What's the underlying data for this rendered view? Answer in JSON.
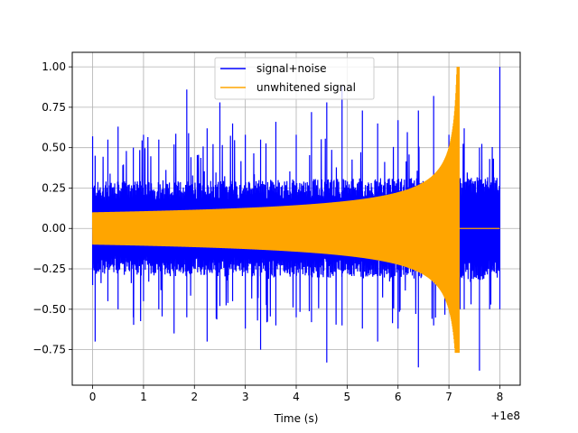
{
  "chart_data": {
    "type": "line",
    "xlabel": "Time (s)",
    "ylabel": "",
    "x_offset_label": "+1e8",
    "xlim": [
      -0.4,
      8.4
    ],
    "ylim": [
      -0.97,
      1.09
    ],
    "x_ticks": [
      0,
      1,
      2,
      3,
      4,
      5,
      6,
      7,
      8
    ],
    "x_tick_labels": [
      "0",
      "1",
      "2",
      "3",
      "4",
      "5",
      "6",
      "7",
      "8"
    ],
    "y_ticks": [
      -0.75,
      -0.5,
      -0.25,
      0.0,
      0.25,
      0.5,
      0.75,
      1.0
    ],
    "y_tick_labels": [
      "−0.75",
      "−0.50",
      "−0.25",
      "0.00",
      "0.25",
      "0.50",
      "0.75",
      "1.00"
    ],
    "grid": true,
    "legend_position": "top-center",
    "series": [
      {
        "name": "signal+noise",
        "color": "#0000ff",
        "x_range": [
          0,
          8.0
        ],
        "points": [
          [
            0.0,
            0.57
          ],
          [
            0.0,
            -0.35
          ],
          [
            0.05,
            0.45
          ],
          [
            0.05,
            -0.7
          ],
          [
            0.3,
            0.55
          ],
          [
            0.3,
            -0.45
          ],
          [
            0.5,
            0.63
          ],
          [
            0.5,
            -0.5
          ],
          [
            0.8,
            0.5
          ],
          [
            0.8,
            -0.55
          ],
          [
            1.0,
            0.58
          ],
          [
            1.0,
            -0.45
          ],
          [
            1.3,
            0.55
          ],
          [
            1.3,
            -0.5
          ],
          [
            1.6,
            0.52
          ],
          [
            1.6,
            -0.65
          ],
          [
            1.85,
            0.86
          ],
          [
            1.85,
            -0.55
          ],
          [
            2.25,
            0.62
          ],
          [
            2.25,
            -0.7
          ],
          [
            2.5,
            0.78
          ],
          [
            2.5,
            -0.48
          ],
          [
            2.75,
            0.65
          ],
          [
            2.75,
            -0.45
          ],
          [
            3.0,
            0.58
          ],
          [
            3.0,
            -0.62
          ],
          [
            3.3,
            0.55
          ],
          [
            3.3,
            -0.75
          ],
          [
            3.6,
            0.66
          ],
          [
            3.6,
            -0.6
          ],
          [
            4.0,
            0.58
          ],
          [
            4.0,
            -0.55
          ],
          [
            4.3,
            0.72
          ],
          [
            4.3,
            -0.58
          ],
          [
            4.6,
            0.78
          ],
          [
            4.6,
            -0.83
          ],
          [
            4.9,
            0.88
          ],
          [
            4.9,
            -0.6
          ],
          [
            5.3,
            0.73
          ],
          [
            5.3,
            -0.62
          ],
          [
            5.6,
            0.65
          ],
          [
            5.6,
            -0.7
          ],
          [
            6.0,
            0.67
          ],
          [
            6.0,
            -0.62
          ],
          [
            6.4,
            0.73
          ],
          [
            6.4,
            -0.86
          ],
          [
            6.7,
            0.82
          ],
          [
            6.7,
            -0.6
          ],
          [
            7.0,
            0.58
          ],
          [
            7.0,
            -0.45
          ],
          [
            7.3,
            0.62
          ],
          [
            7.3,
            -0.5
          ],
          [
            7.6,
            0.5
          ],
          [
            7.6,
            -0.88
          ],
          [
            7.8,
            0.43
          ],
          [
            7.8,
            -0.5
          ],
          [
            8.0,
            1.0
          ],
          [
            8.0,
            -0.5
          ]
        ],
        "envelope": {
          "start_amplitude": 0.17,
          "end_amplitude": 0.2
        }
      },
      {
        "name": "unwhitened signal",
        "color": "#ffa500",
        "x_range": [
          0,
          8.0
        ],
        "chirp": {
          "start_amplitude": 0.1,
          "max_amplitude": 1.0,
          "min_value": -0.77,
          "merger_time": 7.2,
          "post_merger_value": 0.0
        }
      }
    ]
  }
}
